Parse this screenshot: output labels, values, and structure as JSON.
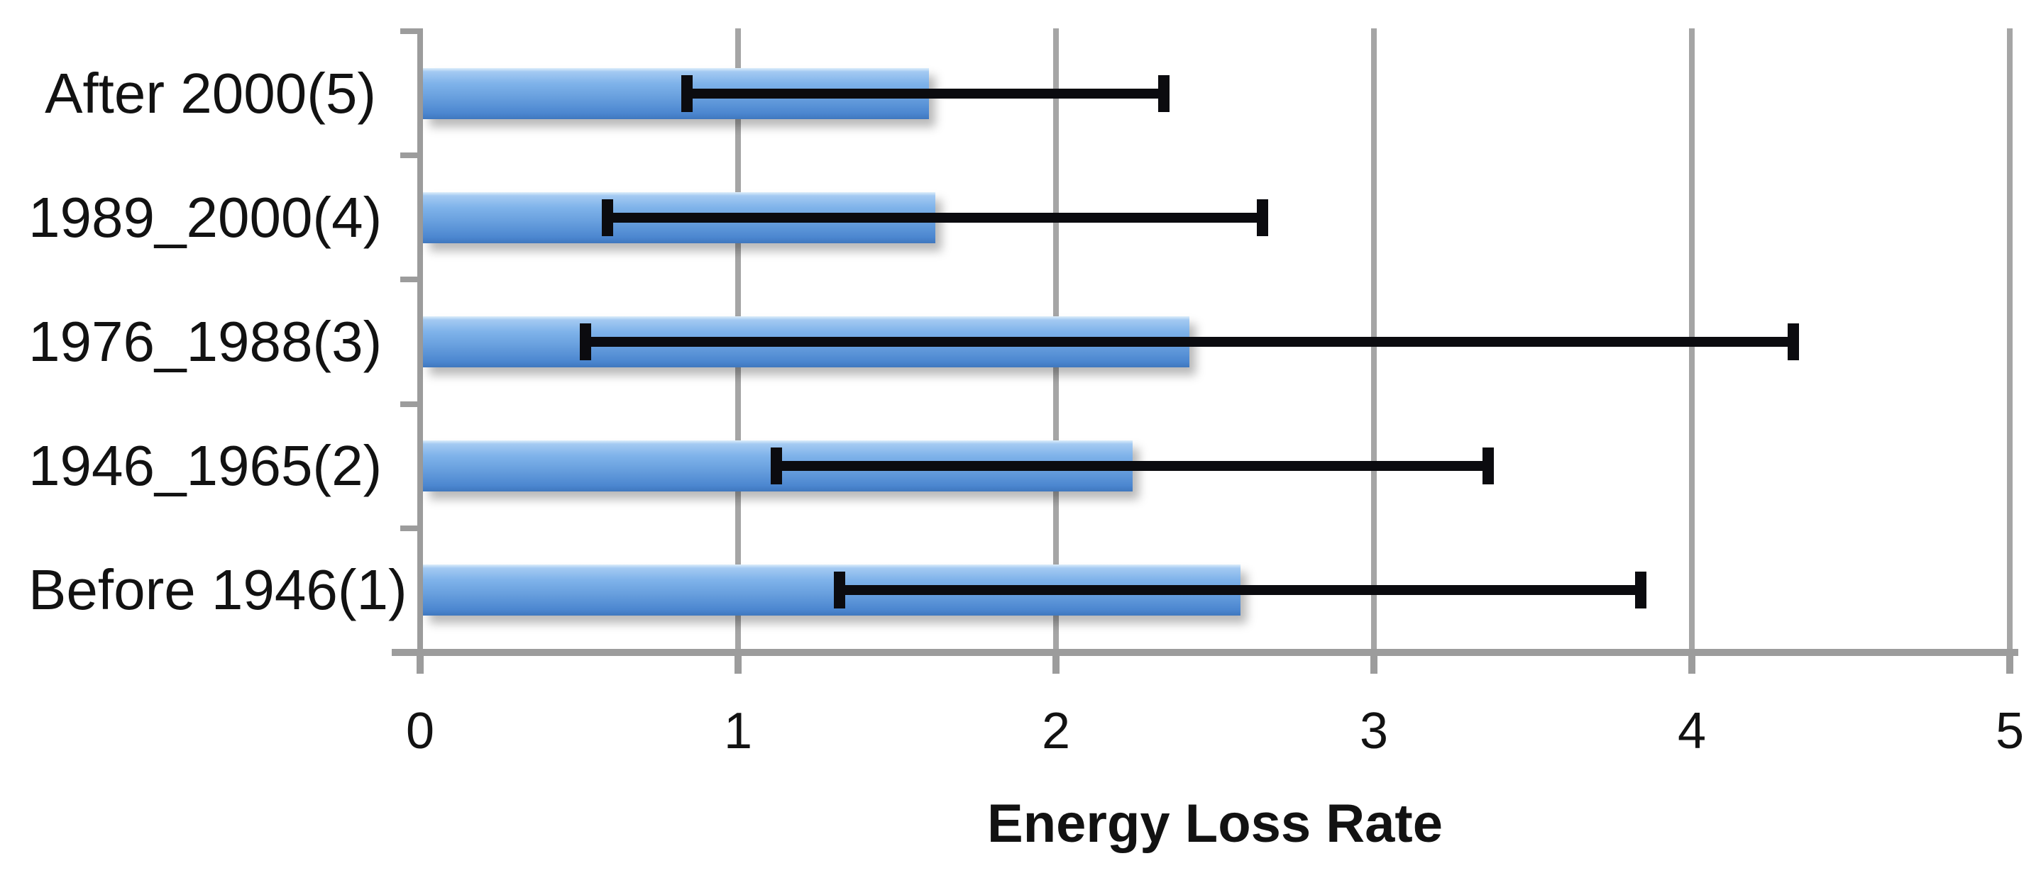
{
  "chart_data": {
    "type": "bar",
    "orientation": "horizontal",
    "title": "",
    "xlabel": "Energy Loss Rate",
    "categories": [
      "After 2000(5)",
      "1989_2000(4)",
      "1976_1988(3)",
      "1946_1965(2)",
      "Before 1946(1)"
    ],
    "values": [
      1.6,
      1.62,
      2.42,
      2.24,
      2.58
    ],
    "error_low": [
      0.84,
      0.59,
      0.52,
      1.12,
      1.32
    ],
    "error_high": [
      2.34,
      2.65,
      4.32,
      3.36,
      3.84
    ],
    "x_ticks": [
      "0",
      "1",
      "2",
      "3",
      "4",
      "5"
    ],
    "xlim": [
      0,
      5
    ],
    "grid": true,
    "legend": false,
    "colors": {
      "bar_fill_light": "#a4caf2",
      "bar_fill_dark": "#4c87d0",
      "error_bar": "#0b0b0f",
      "gridline": "#a5a5a5",
      "axis_line": "#9c9c9c",
      "text": "#121212",
      "background": "#ffffff"
    }
  }
}
